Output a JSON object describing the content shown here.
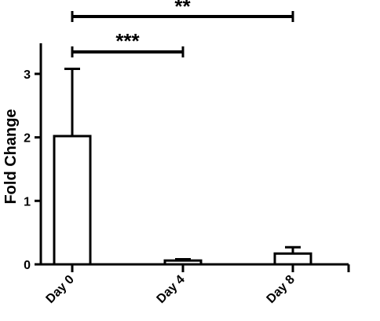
{
  "chart_data": {
    "type": "bar",
    "title": "",
    "xlabel": "",
    "ylabel": "Fold Change",
    "categories": [
      "Day 0",
      "Day 4",
      "Day 8"
    ],
    "values": [
      2.02,
      0.06,
      0.17
    ],
    "error_upper": [
      1.06,
      0.02,
      0.1
    ],
    "ylim": [
      0,
      3.5
    ],
    "yticks": [
      "0",
      "1",
      "2",
      "3"
    ],
    "grid": false,
    "legend": "none",
    "significance": [
      {
        "from": "Day 0",
        "to": "Day 4",
        "label": "***"
      },
      {
        "from": "Day 0",
        "to": "Day 8",
        "label": "**"
      }
    ],
    "colors": {
      "bar_fill": "#ffffff",
      "stroke": "#000000"
    }
  }
}
